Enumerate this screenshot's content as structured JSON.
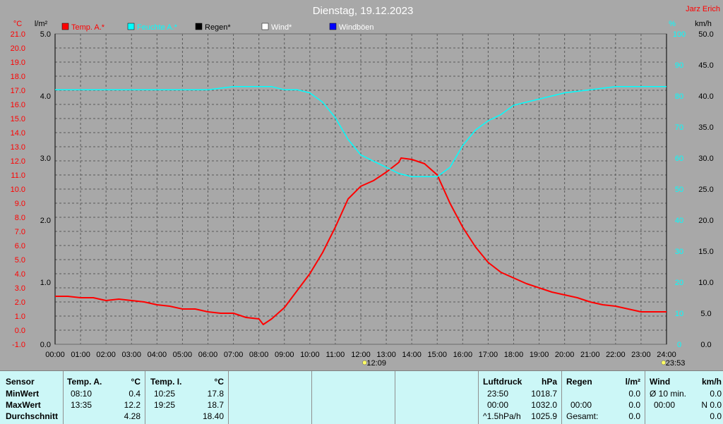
{
  "header": {
    "title": "Dienstag, 19.12.2023",
    "author": "Jarz Erich"
  },
  "axes": {
    "left_outer_unit": "°C",
    "left_inner_unit": "l/m²",
    "right_inner_unit": "%",
    "right_outer_unit": "km/h",
    "temp_ticks": [
      "21.0",
      "20.0",
      "19.0",
      "18.0",
      "17.0",
      "16.0",
      "15.0",
      "14.0",
      "13.0",
      "12.0",
      "11.0",
      "10.0",
      "9.0",
      "8.0",
      "7.0",
      "6.0",
      "5.0",
      "4.0",
      "3.0",
      "2.0",
      "1.0",
      "0.0",
      "-1.0"
    ],
    "rain_ticks": [
      "5.0",
      "4.0",
      "3.0",
      "2.0",
      "1.0",
      "0.0"
    ],
    "hum_ticks": [
      "100",
      "90",
      "80",
      "70",
      "60",
      "50",
      "40",
      "30",
      "20",
      "10",
      "0"
    ],
    "wind_ticks": [
      "50.0",
      "45.0",
      "40.0",
      "35.0",
      "30.0",
      "25.0",
      "20.0",
      "15.0",
      "10.0",
      "5.0",
      "0.0"
    ],
    "x_ticks": [
      "00:00",
      "01:00",
      "02:00",
      "03:00",
      "04:00",
      "05:00",
      "06:00",
      "07:00",
      "08:00",
      "09:00",
      "10:00",
      "11:00",
      "12:00",
      "13:00",
      "14:00",
      "15:00",
      "16:00",
      "17:00",
      "18:00",
      "19:00",
      "20:00",
      "21:00",
      "22:00",
      "23:00",
      "24:00"
    ],
    "sunrise": "12:09",
    "sunset": "23:53"
  },
  "legend": [
    {
      "label": "Temp. A.*",
      "color": "#ff0000",
      "text_color": "#ff0000"
    },
    {
      "label": "Feuchte A.*",
      "color": "#00ffff",
      "text_color": "#00ffff"
    },
    {
      "label": "Regen*",
      "color": "#000000",
      "text_color": "#000000"
    },
    {
      "label": "Wind*",
      "color": "#ffffff",
      "text_color": "#ffffff"
    },
    {
      "label": "Windböen",
      "color": "#0000ff",
      "text_color": "#ffffff"
    }
  ],
  "chart_data": {
    "type": "line",
    "title": "Dienstag, 19.12.2023",
    "x_range": [
      "00:00",
      "24:00"
    ],
    "ylim_temp": [
      -1,
      21
    ],
    "ylim_rain": [
      0,
      5
    ],
    "ylim_humidity": [
      0,
      100
    ],
    "ylim_wind": [
      0,
      50
    ],
    "grid": true,
    "legend_position": "top-left",
    "series": [
      {
        "name": "Temp. A.*",
        "color": "#ff0000",
        "axis": "temp",
        "x": [
          0,
          0.5,
          1,
          1.5,
          2,
          2.5,
          3,
          3.5,
          4,
          4.5,
          5,
          5.5,
          6,
          6.5,
          7,
          7.5,
          8,
          8.17,
          8.5,
          9,
          9.5,
          10,
          10.5,
          11,
          11.5,
          12,
          12.5,
          13,
          13.5,
          13.58,
          14,
          14.5,
          15,
          15.5,
          16,
          16.5,
          17,
          17.5,
          18,
          18.5,
          19,
          19.5,
          20,
          20.5,
          21,
          21.5,
          22,
          22.5,
          23,
          23.5,
          24
        ],
        "y": [
          2.4,
          2.4,
          2.3,
          2.3,
          2.1,
          2.2,
          2.1,
          2.0,
          1.8,
          1.7,
          1.5,
          1.5,
          1.3,
          1.2,
          1.2,
          0.9,
          0.8,
          0.4,
          0.8,
          1.6,
          2.8,
          4.0,
          5.5,
          7.3,
          9.3,
          10.2,
          10.6,
          11.2,
          11.9,
          12.2,
          12.1,
          11.8,
          11.0,
          9.0,
          7.3,
          5.9,
          4.8,
          4.1,
          3.7,
          3.3,
          3.0,
          2.7,
          2.5,
          2.3,
          2.0,
          1.8,
          1.7,
          1.5,
          1.3,
          1.3,
          1.3
        ]
      },
      {
        "name": "Feuchte A.*",
        "color": "#00ffff",
        "axis": "humidity",
        "x": [
          0,
          1,
          2,
          3,
          4,
          5,
          6,
          7,
          8,
          8.5,
          9,
          9.5,
          10,
          10.5,
          11,
          11.5,
          12,
          12.5,
          13,
          13.5,
          14,
          14.5,
          15,
          15.5,
          16,
          16.5,
          17,
          17.5,
          18,
          19,
          20,
          21,
          22,
          23,
          24
        ],
        "y": [
          82,
          82,
          82,
          82,
          82,
          82,
          82,
          83,
          83,
          83,
          82,
          82,
          81,
          78,
          73,
          66,
          61,
          59,
          57,
          55,
          54,
          54,
          54,
          57,
          64,
          69,
          72,
          74,
          77,
          79,
          81,
          82,
          83,
          83,
          83
        ]
      }
    ]
  },
  "panel": {
    "sensor": {
      "header": "Sensor",
      "rows": [
        "MinWert",
        "MaxWert",
        "Durchschnitt"
      ]
    },
    "temp_a": {
      "header": "Temp. A.",
      "unit": "°C",
      "times": [
        "08:10",
        "13:35",
        ""
      ],
      "values": [
        "0.4",
        "12.2",
        "4.28"
      ]
    },
    "temp_i": {
      "header": "Temp. I.",
      "unit": "°C",
      "times": [
        "10:25",
        "19:25",
        ""
      ],
      "values": [
        "17.8",
        "18.7",
        "18.40"
      ]
    },
    "pressure": {
      "header": "Luftdruck",
      "unit": "hPa",
      "times": [
        "23:50",
        "00:00",
        "^1.5hPa/h"
      ],
      "values": [
        "1018.7",
        "1032.0",
        "1025.9"
      ]
    },
    "rain": {
      "header": "Regen",
      "unit": "l/m²",
      "labels": [
        "",
        "00:00",
        "Gesamt:"
      ],
      "values": [
        "0.0",
        "0.0",
        "0.0"
      ]
    },
    "wind": {
      "header": "Wind",
      "unit": "km/h",
      "labels": [
        "Ø 10 min.",
        "00:00",
        ""
      ],
      "values": [
        "0.0",
        "N 0.0",
        "0.0"
      ]
    }
  }
}
